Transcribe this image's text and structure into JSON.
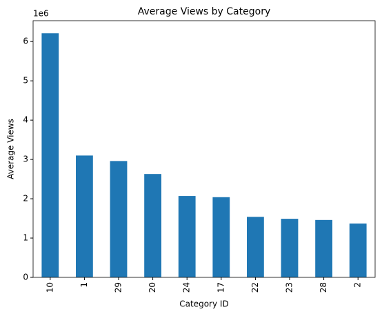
{
  "chart_data": {
    "type": "bar",
    "title": "Average Views by Category",
    "x_label": "Category ID",
    "y_label": "Average Views",
    "y_offset_label": "1e6",
    "categories": [
      "10",
      "1",
      "29",
      "20",
      "24",
      "17",
      "22",
      "23",
      "28",
      "2"
    ],
    "values": [
      6.21,
      3.1,
      2.96,
      2.63,
      2.07,
      2.04,
      1.54,
      1.49,
      1.46,
      1.37
    ],
    "color": "#1f77b4",
    "ylim": [
      0,
      6.53
    ],
    "yticks": [
      0,
      1,
      2,
      3,
      4,
      5,
      6
    ],
    "grid": false
  }
}
